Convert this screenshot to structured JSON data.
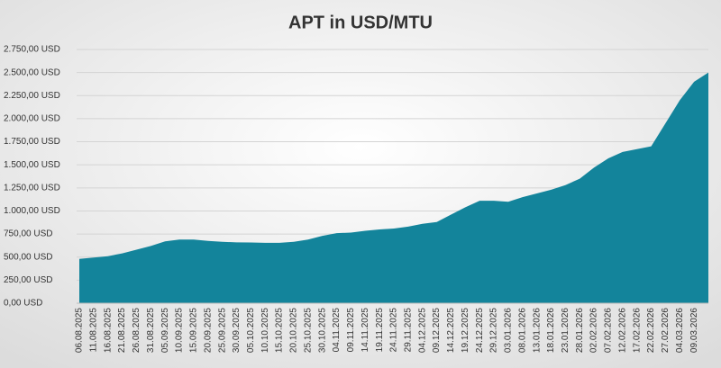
{
  "chart_data": {
    "type": "area",
    "title": "APT in USD/MTU",
    "categories": [
      "06.08.2025",
      "11.08.2025",
      "16.08.2025",
      "21.08.2025",
      "26.08.2025",
      "31.08.2025",
      "05.09.2025",
      "10.09.2025",
      "15.09.2025",
      "20.09.2025",
      "25.09.2025",
      "30.09.2025",
      "05.10.2025",
      "10.10.2025",
      "15.10.2025",
      "20.10.2025",
      "25.10.2025",
      "30.10.2025",
      "04.11.2025",
      "09.11.2025",
      "14.11.2025",
      "19.11.2025",
      "24.11.2025",
      "29.11.2025",
      "04.12.2025",
      "09.12.2025",
      "14.12.2025",
      "19.12.2025",
      "24.12.2025",
      "29.12.2025",
      "03.01.2026",
      "08.01.2026",
      "13.01.2026",
      "18.01.2026",
      "23.01.2026",
      "28.01.2026",
      "02.02.2026",
      "07.02.2026",
      "12.02.2026",
      "17.02.2026",
      "22.02.2026",
      "27.02.2026",
      "04.03.2026",
      "09.03.2026",
      null
    ],
    "values": [
      480,
      495,
      510,
      540,
      580,
      620,
      670,
      690,
      690,
      675,
      665,
      660,
      658,
      655,
      655,
      665,
      690,
      730,
      760,
      765,
      785,
      800,
      810,
      830,
      860,
      880,
      960,
      1040,
      1110,
      1110,
      1100,
      1150,
      1190,
      1230,
      1280,
      1350,
      1470,
      1570,
      1640,
      1670,
      1700,
      1950,
      2200,
      2400,
      2500
    ],
    "color": "#13849b",
    "ylim": [
      0,
      2750
    ],
    "yticks": [
      {
        "value": 0,
        "label": "0,00 USD"
      },
      {
        "value": 250,
        "label": "250,00 USD"
      },
      {
        "value": 500,
        "label": "500,00 USD"
      },
      {
        "value": 750,
        "label": "750,00 USD"
      },
      {
        "value": 1000,
        "label": "1.000,00 USD"
      },
      {
        "value": 1250,
        "label": "1.250,00 USD"
      },
      {
        "value": 1500,
        "label": "1.500,00 USD"
      },
      {
        "value": 1750,
        "label": "1.750,00 USD"
      },
      {
        "value": 2000,
        "label": "2.000,00 USD"
      },
      {
        "value": 2250,
        "label": "2.250,00 USD"
      },
      {
        "value": 2500,
        "label": "2.500,00 USD"
      },
      {
        "value": 2750,
        "label": "2.750,00 USD"
      }
    ],
    "grid": true
  }
}
